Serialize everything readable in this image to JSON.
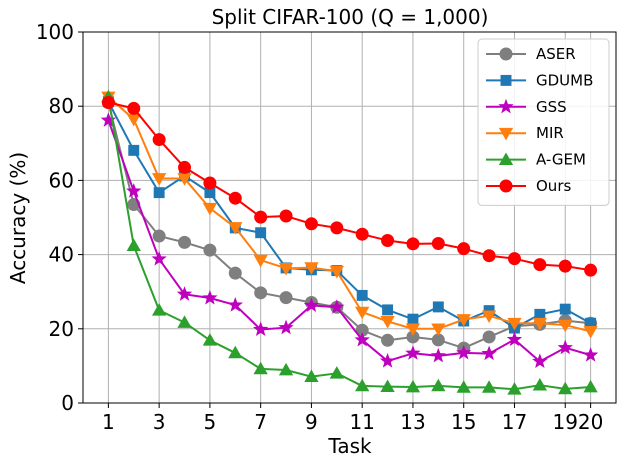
{
  "chart_data": {
    "type": "line",
    "title": "Split CIFAR-100 (Q = 1,000)",
    "xlabel": "Task",
    "ylabel": "Accuracy (%)",
    "xlim": [
      0,
      21
    ],
    "ylim": [
      0,
      100
    ],
    "x_ticks": [
      1,
      3,
      5,
      7,
      9,
      11,
      13,
      15,
      17,
      19,
      20
    ],
    "x_tick_labels": [
      "1",
      "3",
      "5",
      "7",
      "9",
      "11",
      "13",
      "15",
      "17",
      "19",
      "20"
    ],
    "y_ticks": [
      0,
      20,
      40,
      60,
      80,
      100
    ],
    "y_tick_labels": [
      "0",
      "20",
      "40",
      "60",
      "80",
      "100"
    ],
    "grid": true,
    "legend_position": "top-right",
    "x": [
      1,
      2,
      3,
      4,
      5,
      6,
      7,
      8,
      9,
      10,
      11,
      12,
      13,
      14,
      15,
      16,
      17,
      18,
      19,
      20
    ],
    "series": [
      {
        "name": "ASER",
        "color": "#7f7f7f",
        "marker": "circle",
        "values": [
          81.0,
          53.5,
          45.0,
          43.3,
          41.2,
          35.0,
          29.7,
          28.4,
          27.1,
          25.8,
          19.6,
          16.9,
          17.8,
          17.0,
          14.8,
          17.8,
          20.7,
          21.2,
          22.2,
          21.5
        ]
      },
      {
        "name": "GDUMB",
        "color": "#1f77b4",
        "marker": "square",
        "values": [
          81.2,
          68.1,
          56.7,
          61.2,
          56.7,
          47.2,
          45.9,
          36.4,
          35.9,
          35.7,
          29.0,
          25.1,
          22.6,
          25.9,
          22.1,
          24.9,
          20.2,
          23.9,
          25.3,
          21.5
        ]
      },
      {
        "name": "GSS",
        "color": "#bf00bf",
        "marker": "star",
        "values": [
          76.2,
          57.1,
          38.8,
          29.3,
          28.3,
          26.4,
          19.8,
          20.3,
          26.3,
          25.8,
          17.0,
          11.3,
          13.4,
          12.7,
          13.5,
          13.3,
          17.1,
          11.2,
          14.9,
          12.9
        ]
      },
      {
        "name": "MIR",
        "color": "#ff7f0e",
        "marker": "triangle-down",
        "values": [
          82.5,
          76.5,
          60.5,
          60.5,
          52.5,
          47.3,
          38.5,
          36.3,
          36.5,
          35.5,
          24.5,
          22.0,
          20.0,
          20.0,
          22.5,
          23.5,
          21.5,
          21.5,
          21.0,
          19.3
        ]
      },
      {
        "name": "A-GEM",
        "color": "#2ca02c",
        "marker": "triangle-up",
        "values": [
          82.5,
          42.4,
          25.0,
          21.7,
          16.9,
          13.5,
          9.2,
          8.9,
          7.1,
          8.0,
          4.6,
          4.4,
          4.3,
          4.6,
          4.2,
          4.2,
          3.7,
          4.8,
          3.8,
          4.3
        ]
      },
      {
        "name": "Ours",
        "color": "#ff0000",
        "marker": "circle",
        "values": [
          81.0,
          79.4,
          71.0,
          63.5,
          59.3,
          55.2,
          50.1,
          50.4,
          48.3,
          47.2,
          45.5,
          43.8,
          42.9,
          43.0,
          41.6,
          39.7,
          38.9,
          37.3,
          36.9,
          35.8
        ]
      }
    ]
  }
}
